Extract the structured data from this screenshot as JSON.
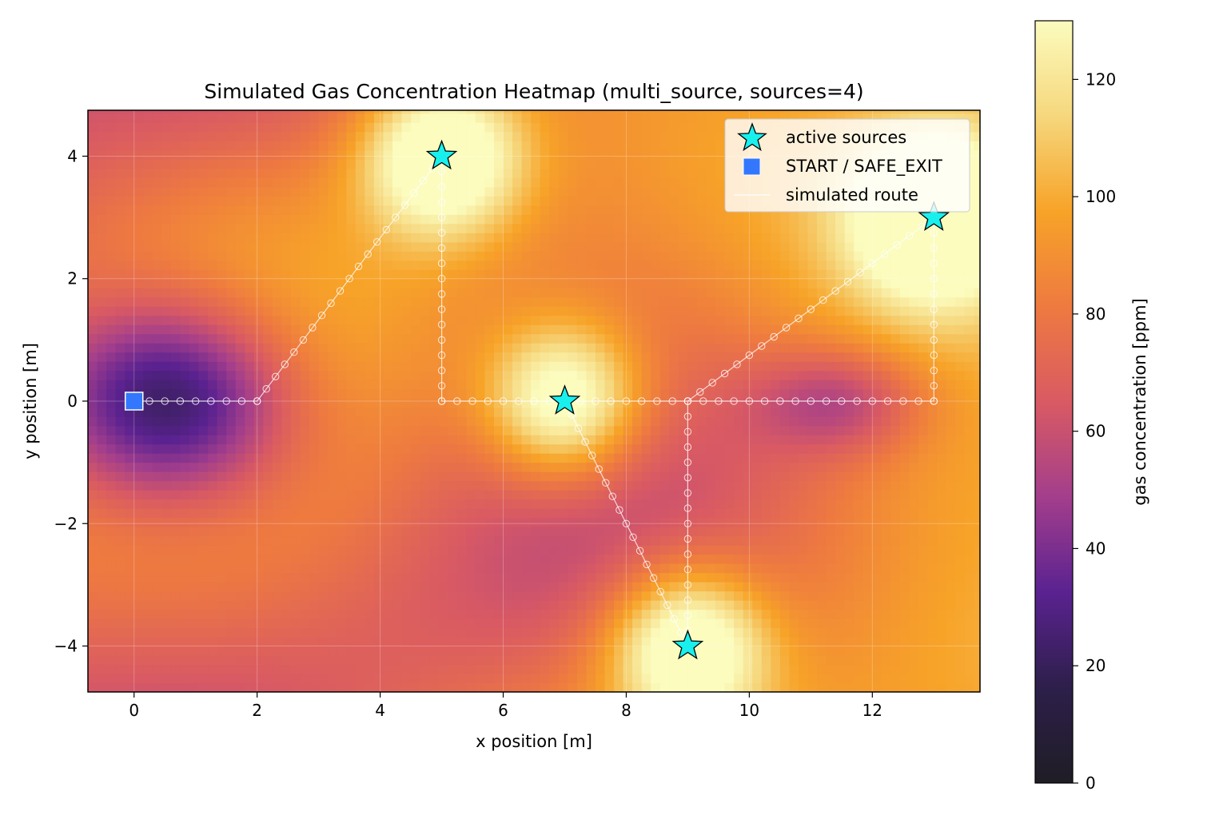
{
  "chart_data": {
    "type": "heatmap",
    "title": "Simulated Gas Concentration Heatmap (multi_source, sources=4)",
    "xlabel": "x position [m]",
    "ylabel": "y position [m]",
    "xlim": [
      -0.75,
      13.75
    ],
    "ylim": [
      -4.75,
      4.75
    ],
    "x_ticks": [
      0,
      2,
      4,
      6,
      8,
      10,
      12
    ],
    "y_ticks": [
      -4,
      -2,
      0,
      2,
      4
    ],
    "grid": true,
    "colorbar": {
      "label": "gas concentration [ppm]",
      "range": [
        0,
        130
      ],
      "ticks": [
        0,
        20,
        40,
        60,
        80,
        100,
        120
      ],
      "colormap": "inferno",
      "stops": [
        "#1f1d25",
        "#2d1f4a",
        "#5a2290",
        "#a33e8c",
        "#d95a63",
        "#ee7a40",
        "#f7a328",
        "#f6d77d",
        "#fbfcbe"
      ]
    },
    "legend": {
      "placement": "upper right",
      "entries": [
        {
          "label": "active sources",
          "marker": "star",
          "color": "#19f0ee"
        },
        {
          "label": "START / SAFE_EXIT",
          "marker": "square",
          "color": "#3377ff"
        },
        {
          "label": "simulated route",
          "marker": "line",
          "color": "#ffffff"
        }
      ]
    },
    "series": [
      {
        "name": "active sources",
        "points": [
          [
            5,
            4
          ],
          [
            13,
            3
          ],
          [
            7,
            0
          ],
          [
            9,
            -4
          ]
        ]
      },
      {
        "name": "START / SAFE_EXIT",
        "points": [
          [
            0,
            0
          ]
        ]
      },
      {
        "name": "simulated route",
        "waypoints": [
          [
            0,
            0
          ],
          [
            2,
            0
          ],
          [
            5,
            4
          ],
          [
            5,
            0
          ],
          [
            7,
            0
          ],
          [
            9,
            -4
          ],
          [
            9,
            0
          ],
          [
            13,
            3
          ],
          [
            13,
            0
          ],
          [
            7,
            0
          ]
        ]
      }
    ]
  }
}
